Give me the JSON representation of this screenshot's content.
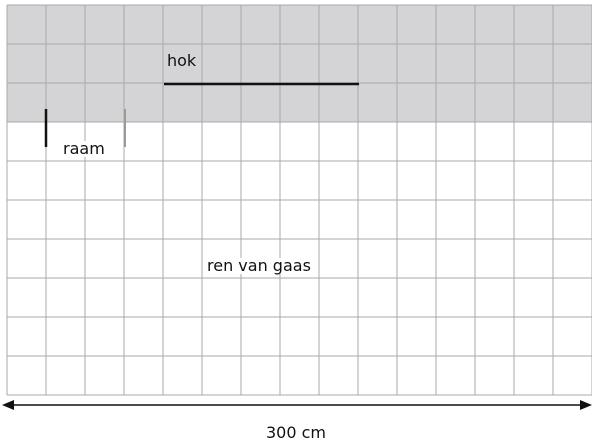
{
  "labels": {
    "shed": "hok",
    "window": "raam",
    "run": "ren van gaas",
    "width": "300 cm"
  },
  "colors": {
    "shed_fill": "#d4d4d6",
    "grid_line": "#a9a9ab",
    "ink": "#111111"
  },
  "grid": {
    "columns": 15,
    "rows": 10,
    "shed_rows": 3
  }
}
